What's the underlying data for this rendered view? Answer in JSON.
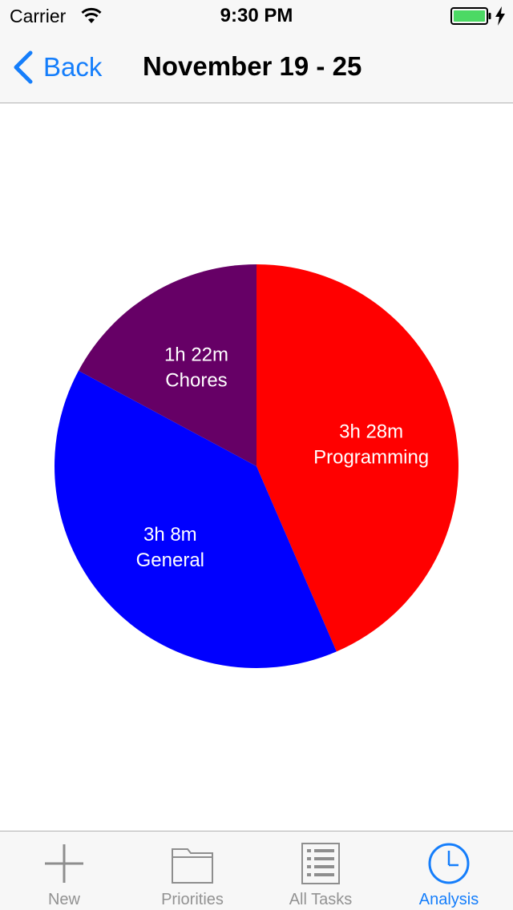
{
  "status_bar": {
    "carrier": "Carrier",
    "time": "9:30 PM",
    "battery_color": "#4cd964"
  },
  "nav": {
    "back_label": "Back",
    "title": "November 19 - 25"
  },
  "chart_data": {
    "type": "pie",
    "title": "",
    "slices": [
      {
        "name": "Programming",
        "value_label": "3h 28m",
        "minutes": 208,
        "color": "#ff0000"
      },
      {
        "name": "General",
        "value_label": "3h 8m",
        "minutes": 188,
        "color": "#0000ff"
      },
      {
        "name": "Chores",
        "value_label": "1h 22m",
        "minutes": 82,
        "color": "#660066"
      }
    ],
    "start": "top, clockwise"
  },
  "tabs": [
    {
      "label": "New",
      "icon": "plus-icon",
      "active": false
    },
    {
      "label": "Priorities",
      "icon": "folder-icon",
      "active": false
    },
    {
      "label": "All Tasks",
      "icon": "list-icon",
      "active": false
    },
    {
      "label": "Analysis",
      "icon": "clock-icon",
      "active": true
    }
  ],
  "colors": {
    "accent": "#157efb",
    "tab_inactive": "#929292"
  }
}
